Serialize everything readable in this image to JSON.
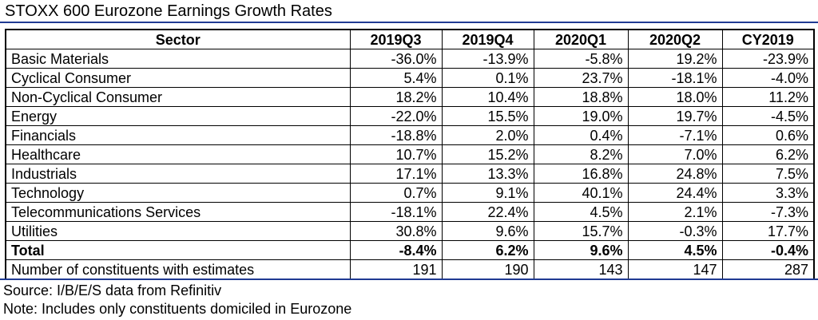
{
  "title": "STOXX 600 Eurozone Earnings Growth Rates",
  "table": {
    "headers": [
      "Sector",
      "2019Q3",
      "2019Q4",
      "2020Q1",
      "2020Q2",
      "CY2019"
    ],
    "rows": [
      [
        "Basic Materials",
        "-36.0%",
        "-13.9%",
        "-5.8%",
        "19.2%",
        "-23.9%"
      ],
      [
        "Cyclical Consumer",
        "5.4%",
        "0.1%",
        "23.7%",
        "-18.1%",
        "-4.0%"
      ],
      [
        "Non-Cyclical Consumer",
        "18.2%",
        "10.4%",
        "18.8%",
        "18.0%",
        "11.2%"
      ],
      [
        "Energy",
        "-22.0%",
        "15.5%",
        "19.0%",
        "19.7%",
        "-4.5%"
      ],
      [
        "Financials",
        "-18.8%",
        "2.0%",
        "0.4%",
        "-7.1%",
        "0.6%"
      ],
      [
        "Healthcare",
        "10.7%",
        "15.2%",
        "8.2%",
        "7.0%",
        "6.2%"
      ],
      [
        "Industrials",
        "17.1%",
        "13.3%",
        "16.8%",
        "24.8%",
        "7.5%"
      ],
      [
        "Technology",
        "0.7%",
        "9.1%",
        "40.1%",
        "24.4%",
        "3.3%"
      ],
      [
        "Telecommunications Services",
        "-18.1%",
        "22.4%",
        "4.5%",
        "2.1%",
        "-7.3%"
      ],
      [
        "Utilities",
        "30.8%",
        "9.6%",
        "15.7%",
        "-0.3%",
        "17.7%"
      ]
    ],
    "total": [
      "Total",
      "-8.4%",
      "6.2%",
      "9.6%",
      "4.5%",
      "-0.4%"
    ],
    "constituents": [
      "Number of constituents with estimates",
      "191",
      "190",
      "143",
      "147",
      "287"
    ]
  },
  "footnotes": {
    "source": "Source: I/B/E/S data from Refinitiv",
    "note": "Note: Includes only constituents domiciled in Eurozone"
  },
  "colors": {
    "rule": "#1f3a93"
  }
}
